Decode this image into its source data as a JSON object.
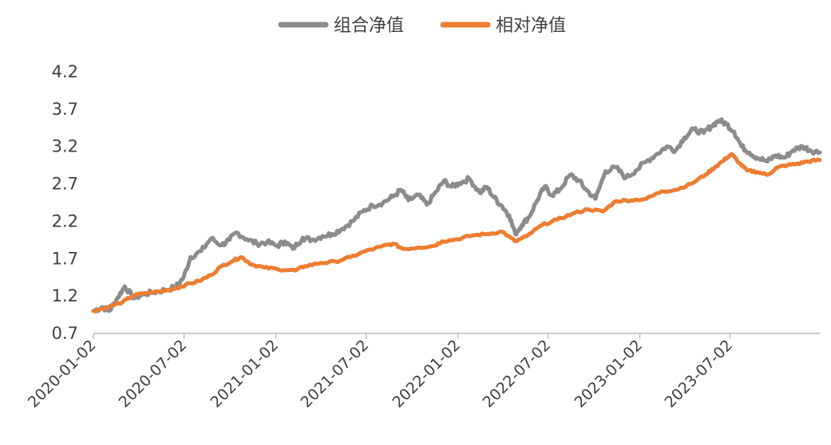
{
  "chart_data": {
    "type": "line",
    "title": "",
    "xlabel": "",
    "ylabel": "",
    "legend_position": "top-center",
    "grid": false,
    "ylim": [
      0.7,
      4.2
    ],
    "y_ticks": [
      "0.7",
      "1.2",
      "1.7",
      "2.2",
      "2.7",
      "3.2",
      "3.7",
      "4.2"
    ],
    "x_ticks": [
      "2020-01-02",
      "2020-07-02",
      "2021-01-02",
      "2021-07-02",
      "2022-01-02",
      "2022-07-02",
      "2023-01-02",
      "2023-07-02"
    ],
    "x_range": [
      "2020-01-02",
      "2023-12-29"
    ],
    "series": [
      {
        "name": "组合净值",
        "color": "#8c8c8c",
        "points": [
          [
            "2020-01-02",
            1.0
          ],
          [
            "2020-01-20",
            1.05
          ],
          [
            "2020-02-03",
            1.0
          ],
          [
            "2020-02-20",
            1.18
          ],
          [
            "2020-03-05",
            1.33
          ],
          [
            "2020-03-23",
            1.17
          ],
          [
            "2020-04-10",
            1.22
          ],
          [
            "2020-05-01",
            1.25
          ],
          [
            "2020-05-25",
            1.28
          ],
          [
            "2020-06-15",
            1.32
          ],
          [
            "2020-07-01",
            1.45
          ],
          [
            "2020-07-15",
            1.72
          ],
          [
            "2020-08-05",
            1.8
          ],
          [
            "2020-08-25",
            1.97
          ],
          [
            "2020-09-15",
            1.88
          ],
          [
            "2020-10-01",
            1.95
          ],
          [
            "2020-10-15",
            2.05
          ],
          [
            "2020-11-05",
            1.96
          ],
          [
            "2020-11-25",
            1.9
          ],
          [
            "2020-12-15",
            1.92
          ],
          [
            "2021-01-05",
            1.87
          ],
          [
            "2021-01-20",
            1.93
          ],
          [
            "2021-02-05",
            1.83
          ],
          [
            "2021-02-25",
            1.98
          ],
          [
            "2021-03-15",
            1.95
          ],
          [
            "2021-04-05",
            2.0
          ],
          [
            "2021-04-25",
            2.03
          ],
          [
            "2021-05-15",
            2.1
          ],
          [
            "2021-06-05",
            2.2
          ],
          [
            "2021-06-25",
            2.33
          ],
          [
            "2021-07-15",
            2.41
          ],
          [
            "2021-08-05",
            2.45
          ],
          [
            "2021-08-25",
            2.53
          ],
          [
            "2021-09-10",
            2.62
          ],
          [
            "2021-09-25",
            2.48
          ],
          [
            "2021-10-15",
            2.55
          ],
          [
            "2021-11-01",
            2.42
          ],
          [
            "2021-11-20",
            2.6
          ],
          [
            "2021-12-05",
            2.74
          ],
          [
            "2021-12-20",
            2.66
          ],
          [
            "2022-01-05",
            2.71
          ],
          [
            "2022-01-25",
            2.77
          ],
          [
            "2022-02-15",
            2.58
          ],
          [
            "2022-03-01",
            2.66
          ],
          [
            "2022-03-15",
            2.52
          ],
          [
            "2022-04-01",
            2.4
          ],
          [
            "2022-04-15",
            2.28
          ],
          [
            "2022-04-27",
            2.03
          ],
          [
            "2022-05-10",
            2.15
          ],
          [
            "2022-05-25",
            2.26
          ],
          [
            "2022-06-10",
            2.48
          ],
          [
            "2022-06-25",
            2.66
          ],
          [
            "2022-07-10",
            2.55
          ],
          [
            "2022-07-25",
            2.62
          ],
          [
            "2022-08-15",
            2.82
          ],
          [
            "2022-09-01",
            2.75
          ],
          [
            "2022-09-15",
            2.63
          ],
          [
            "2022-10-05",
            2.5
          ],
          [
            "2022-10-25",
            2.87
          ],
          [
            "2022-11-15",
            2.92
          ],
          [
            "2022-12-05",
            2.78
          ],
          [
            "2022-12-25",
            2.88
          ],
          [
            "2023-01-15",
            3.0
          ],
          [
            "2023-02-05",
            3.1
          ],
          [
            "2023-02-25",
            3.2
          ],
          [
            "2023-03-15",
            3.15
          ],
          [
            "2023-04-01",
            3.32
          ],
          [
            "2023-04-20",
            3.43
          ],
          [
            "2023-05-10",
            3.38
          ],
          [
            "2023-05-25",
            3.47
          ],
          [
            "2023-06-10",
            3.55
          ],
          [
            "2023-06-25",
            3.5
          ],
          [
            "2023-07-10",
            3.4
          ],
          [
            "2023-07-25",
            3.2
          ],
          [
            "2023-08-10",
            3.12
          ],
          [
            "2023-08-25",
            3.05
          ],
          [
            "2023-09-15",
            3.0
          ],
          [
            "2023-10-01",
            3.08
          ],
          [
            "2023-10-20",
            3.05
          ],
          [
            "2023-11-05",
            3.15
          ],
          [
            "2023-11-25",
            3.2
          ],
          [
            "2023-12-10",
            3.15
          ],
          [
            "2023-12-29",
            3.12
          ]
        ]
      },
      {
        "name": "相对净值",
        "color": "#ed7d31",
        "points": [
          [
            "2020-01-02",
            1.0
          ],
          [
            "2020-02-01",
            1.05
          ],
          [
            "2020-03-01",
            1.12
          ],
          [
            "2020-03-20",
            1.2
          ],
          [
            "2020-04-15",
            1.24
          ],
          [
            "2020-05-15",
            1.26
          ],
          [
            "2020-06-15",
            1.3
          ],
          [
            "2020-07-05",
            1.35
          ],
          [
            "2020-08-01",
            1.4
          ],
          [
            "2020-08-25",
            1.48
          ],
          [
            "2020-09-15",
            1.6
          ],
          [
            "2020-10-10",
            1.68
          ],
          [
            "2020-10-25",
            1.72
          ],
          [
            "2020-11-15",
            1.62
          ],
          [
            "2020-12-10",
            1.58
          ],
          [
            "2021-01-05",
            1.56
          ],
          [
            "2021-02-10",
            1.54
          ],
          [
            "2021-03-01",
            1.6
          ],
          [
            "2021-04-01",
            1.64
          ],
          [
            "2021-05-01",
            1.66
          ],
          [
            "2021-06-01",
            1.72
          ],
          [
            "2021-07-01",
            1.8
          ],
          [
            "2021-08-01",
            1.86
          ],
          [
            "2021-08-25",
            1.9
          ],
          [
            "2021-09-15",
            1.83
          ],
          [
            "2021-10-15",
            1.85
          ],
          [
            "2021-11-15",
            1.87
          ],
          [
            "2021-12-01",
            1.93
          ],
          [
            "2022-01-01",
            1.96
          ],
          [
            "2022-02-01",
            2.01
          ],
          [
            "2022-03-01",
            2.03
          ],
          [
            "2022-04-01",
            2.06
          ],
          [
            "2022-04-27",
            1.93
          ],
          [
            "2022-05-20",
            2.0
          ],
          [
            "2022-06-20",
            2.15
          ],
          [
            "2022-07-20",
            2.22
          ],
          [
            "2022-08-20",
            2.3
          ],
          [
            "2022-09-20",
            2.36
          ],
          [
            "2022-10-20",
            2.33
          ],
          [
            "2022-11-15",
            2.47
          ],
          [
            "2022-12-15",
            2.48
          ],
          [
            "2023-01-15",
            2.5
          ],
          [
            "2023-02-15",
            2.6
          ],
          [
            "2023-03-15",
            2.62
          ],
          [
            "2023-04-15",
            2.7
          ],
          [
            "2023-05-15",
            2.83
          ],
          [
            "2023-06-01",
            2.92
          ],
          [
            "2023-06-20",
            3.02
          ],
          [
            "2023-07-05",
            3.1
          ],
          [
            "2023-07-20",
            2.98
          ],
          [
            "2023-08-05",
            2.88
          ],
          [
            "2023-08-25",
            2.86
          ],
          [
            "2023-09-15",
            2.82
          ],
          [
            "2023-10-05",
            2.92
          ],
          [
            "2023-10-25",
            2.95
          ],
          [
            "2023-11-15",
            2.97
          ],
          [
            "2023-12-05",
            3.0
          ],
          [
            "2023-12-29",
            3.02
          ]
        ]
      }
    ]
  }
}
